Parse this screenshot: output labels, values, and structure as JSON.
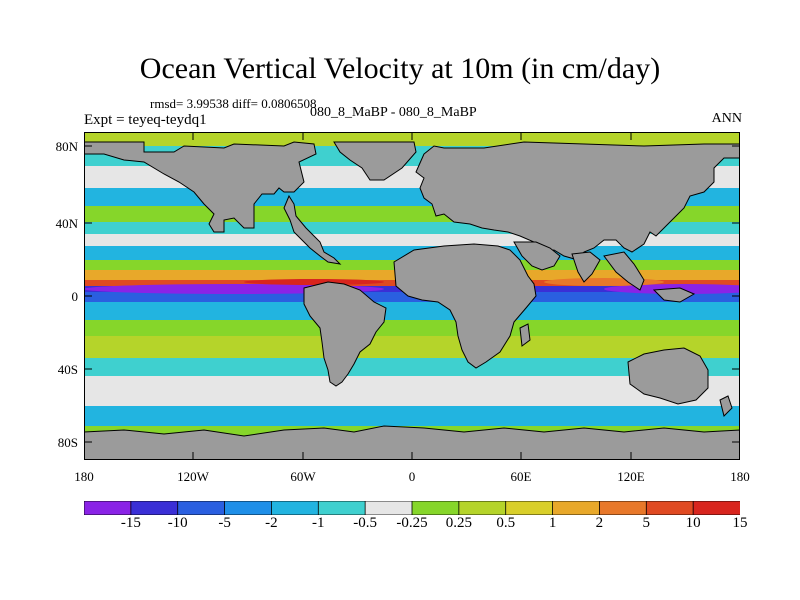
{
  "title": "Ocean Vertical Velocity at 10m (in cm/day)",
  "stats_text": "rmsd= 3.99538 diff= 0.0806508",
  "experiment_text": "Expt = teyeq-teydq1",
  "case_text": "080_8_MaBP - 080_8_MaBP",
  "season": "ANN",
  "y_ticks": [
    "80N",
    "40N",
    "0",
    "40S",
    "80S"
  ],
  "x_ticks": [
    "180",
    "120W",
    "60W",
    "0",
    "60E",
    "120E",
    "180"
  ],
  "colorbar": {
    "labels": [
      "-15",
      "-10",
      "-5",
      "-2",
      "-1",
      "-0.5",
      "-0.25",
      "0.25",
      "0.5",
      "1",
      "2",
      "5",
      "10",
      "15"
    ],
    "colors": [
      "#8a23e6",
      "#3a2fd6",
      "#2a5fe0",
      "#1f8fe8",
      "#22b4e0",
      "#3fd0cf",
      "#e6e6e6",
      "#86d62a",
      "#b5d42a",
      "#d9cf2a",
      "#e8a82a",
      "#e8782a",
      "#e04a22",
      "#d8251e"
    ]
  },
  "land_color": "#9b9b9b"
}
